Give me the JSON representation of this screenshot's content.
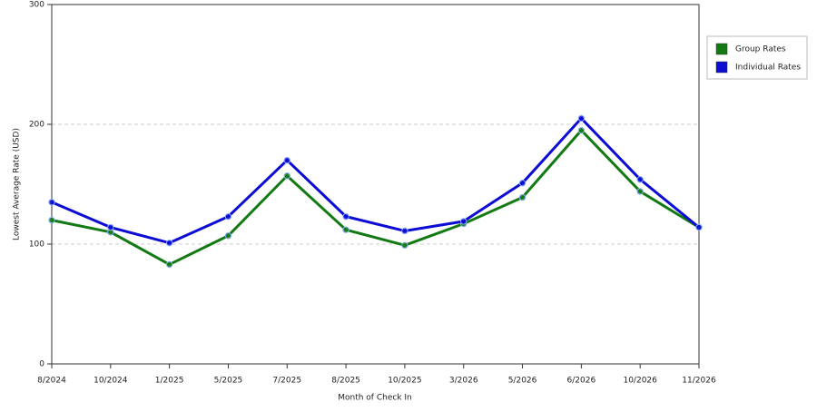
{
  "chart_data": {
    "type": "line",
    "x_label": "Month of Check In",
    "y_label": "Lowest Average Rate (USD)",
    "categories": [
      "8/2024",
      "10/2024",
      "1/2025",
      "5/2025",
      "7/2025",
      "8/2025",
      "10/2025",
      "3/2026",
      "5/2026",
      "6/2026",
      "10/2026",
      "11/2026"
    ],
    "series": [
      {
        "name": "Group Rates",
        "color": "#137a13",
        "values": [
          120,
          110,
          83,
          107,
          157,
          112,
          99,
          117,
          139,
          195,
          144,
          114
        ]
      },
      {
        "name": "Individual Rates",
        "color": "#0c0cd4",
        "values": [
          135,
          114,
          101,
          123,
          170,
          123,
          111,
          119,
          151,
          205,
          154,
          114
        ]
      }
    ],
    "ylim": [
      0,
      300
    ],
    "yticks": [
      0,
      100,
      200,
      300
    ],
    "grid": true,
    "legend": "right"
  }
}
